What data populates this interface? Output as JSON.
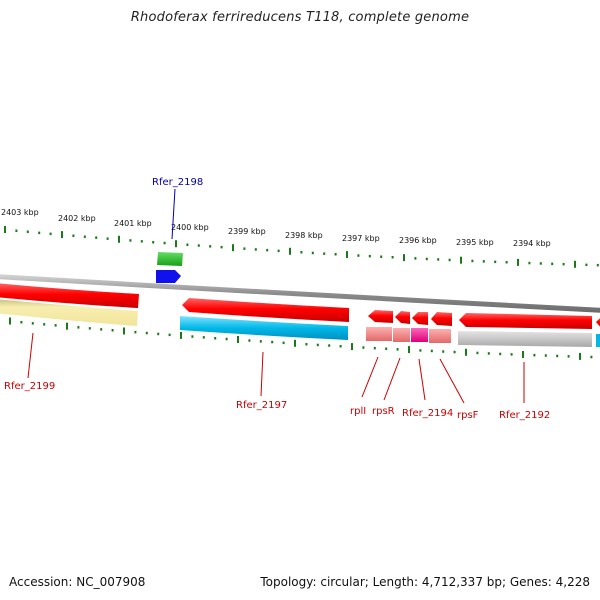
{
  "title": "Rhodoferax ferrireducens T118, complete genome",
  "footer": {
    "accession": "Accession: NC_007908",
    "summary": "Topology: circular; Length: 4,712,337 bp; Genes: 4,228"
  },
  "ruler": {
    "ticks": [
      "2403 kbp",
      "2402 kbp",
      "2401 kbp",
      "2400 kbp",
      "2399 kbp",
      "2398 kbp",
      "2397 kbp",
      "2396 kbp",
      "2395 kbp",
      "2394 kbp"
    ]
  },
  "gene_labels": {
    "rfer_2198": "Rfer_2198",
    "rfer_2199": "Rfer_2199",
    "rfer_2197": "Rfer_2197",
    "rpll": "rplI",
    "rpsr": "rpsR",
    "rfer_2194": "Rfer_2194",
    "rpsf": "rpsF",
    "rfer_2192": "Rfer_2192"
  },
  "colors": {
    "cds": "#ff0000",
    "backbone": "#909090",
    "label_red": "#cc0000",
    "label_blue": "#0000aa",
    "tick": "#1a7a1a",
    "green_feature": "#22bb22",
    "blue_feature": "#1111ee",
    "cyan_feature": "#00b8e8",
    "yellow_feature": "#f4e8a0",
    "pink_feature": "#f08080",
    "magenta_feature": "#ee1188",
    "grey_feature": "#bdbdbd"
  }
}
